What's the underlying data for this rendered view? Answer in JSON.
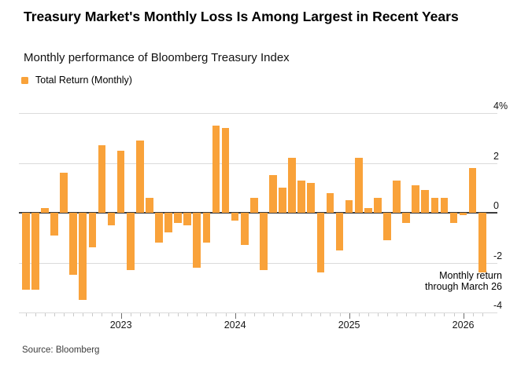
{
  "header": {
    "title": "Treasury Market's Monthly Loss Is Among Largest in Recent Years",
    "subtitle": "Monthly performance of Bloomberg Treasury Index"
  },
  "legend": {
    "label": "Total Return (Monthly)"
  },
  "annotation": {
    "line1": "Monthly return",
    "line2": "through March 26"
  },
  "source": "Source: Bloomberg",
  "colors": {
    "bar": "#F9A23A",
    "grid": "#DBDBDB",
    "zero_line": "#3D3D3D",
    "text": "#000000"
  },
  "chart_data": {
    "type": "bar",
    "title": "Treasury Market's Monthly Loss Is Among Largest in Recent Years",
    "subtitle": "Monthly performance of Bloomberg Treasury Index",
    "series_name": "Total Return (Monthly)",
    "unit": "%",
    "ylim": [
      -4,
      4
    ],
    "grid": "horizontal",
    "legend_position": "top-left",
    "axis_side": "right",
    "x": [
      "2022-03",
      "2022-04",
      "2022-05",
      "2022-06",
      "2022-07",
      "2022-08",
      "2022-09",
      "2022-10",
      "2022-11",
      "2022-12",
      "2023-01",
      "2023-02",
      "2023-03",
      "2023-04",
      "2023-05",
      "2023-06",
      "2023-07",
      "2023-08",
      "2023-09",
      "2023-10",
      "2023-11",
      "2023-12",
      "2024-01",
      "2024-02",
      "2024-03",
      "2024-04",
      "2024-05",
      "2024-06",
      "2024-07",
      "2024-08",
      "2024-09",
      "2024-10",
      "2024-11",
      "2024-12",
      "2025-01",
      "2025-02",
      "2025-03",
      "2025-04",
      "2025-05",
      "2025-06",
      "2025-07",
      "2025-08",
      "2025-09",
      "2025-10",
      "2025-11",
      "2025-12",
      "2026-01",
      "2026-02",
      "2026-03"
    ],
    "values": [
      -3.1,
      -3.1,
      0.2,
      -0.9,
      1.6,
      -2.5,
      -3.5,
      -1.4,
      2.7,
      -0.5,
      2.5,
      -2.3,
      2.9,
      0.6,
      -1.2,
      -0.8,
      -0.4,
      -0.5,
      -2.2,
      -1.2,
      3.5,
      3.4,
      -0.3,
      -1.3,
      0.6,
      -2.3,
      1.5,
      1.0,
      2.2,
      1.3,
      1.2,
      -2.4,
      0.8,
      -1.5,
      0.5,
      2.2,
      0.2,
      0.6,
      -1.1,
      1.3,
      -0.4,
      1.1,
      0.9,
      0.6,
      0.6,
      -0.4,
      -0.1,
      1.8,
      -2.4
    ],
    "y_ticks": [
      {
        "value": 4,
        "label": "4%"
      },
      {
        "value": 2,
        "label": "2"
      },
      {
        "value": 0,
        "label": "0"
      },
      {
        "value": -2,
        "label": "-2"
      },
      {
        "value": -4,
        "label": "-4"
      }
    ],
    "x_year_ticks": [
      {
        "label": "2023",
        "index": 10
      },
      {
        "label": "2024",
        "index": 22
      },
      {
        "label": "2025",
        "index": 34
      },
      {
        "label": "2026",
        "index": 46
      }
    ],
    "annotation": "Monthly return through March 26"
  }
}
